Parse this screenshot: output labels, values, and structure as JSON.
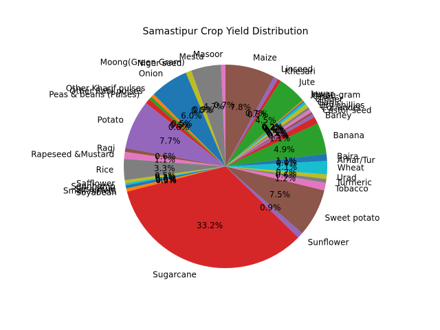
{
  "chart_data": {
    "type": "pie",
    "title": "Samastipur Crop Yield Distribution",
    "start_angle_deg": 90,
    "direction": "counterclockwise",
    "percent_format": "%1.1f%%",
    "slices": [
      {
        "label": "Masoor",
        "value": 0.7,
        "color": "#e377c2"
      },
      {
        "label": "Mesta",
        "value": 4.7,
        "color": "#7f7f7f"
      },
      {
        "label": "Moong(Green Gram)",
        "value": 0.9,
        "color": "#bcbd22"
      },
      {
        "label": "Niger seed",
        "value": 0.0,
        "color": "#17becf"
      },
      {
        "label": "Onion",
        "value": 6.0,
        "color": "#1f77b4"
      },
      {
        "label": "Other Kharif pulses",
        "value": 0.5,
        "color": "#ff7f0e"
      },
      {
        "label": "Other Rabi pulses",
        "value": 0.5,
        "color": "#2ca02c"
      },
      {
        "label": "Peas & beans (Pulses)",
        "value": 0.8,
        "color": "#d62728"
      },
      {
        "label": "Potato",
        "value": 7.7,
        "color": "#9467bd"
      },
      {
        "label": "Ragi",
        "value": 0.6,
        "color": "#8c564b"
      },
      {
        "label": "Rapeseed &Mustard",
        "value": 1.1,
        "color": "#e377c2"
      },
      {
        "label": "Rice",
        "value": 3.3,
        "color": "#7f7f7f"
      },
      {
        "label": "Safflower",
        "value": 0.5,
        "color": "#bcbd22"
      },
      {
        "label": "Sannhamp",
        "value": 0.3,
        "color": "#17becf"
      },
      {
        "label": "Sesamum",
        "value": 0.5,
        "color": "#1f77b4"
      },
      {
        "label": "Small millets",
        "value": 0.0,
        "color": "#ff7f0e"
      },
      {
        "label": "Soyabean",
        "value": 0.5,
        "color": "#ff7f0e"
      },
      {
        "label": "Sugarcane",
        "value": 33.2,
        "color": "#d62728"
      },
      {
        "label": "Sunflower",
        "value": 0.9,
        "color": "#9467bd"
      },
      {
        "label": "Sweet potato",
        "value": 7.5,
        "color": "#8c564b"
      },
      {
        "label": "Tobacco",
        "value": 1.2,
        "color": "#e377c2"
      },
      {
        "label": "Turmeric",
        "value": 0.6,
        "color": "#7f7f7f"
      },
      {
        "label": "Urad",
        "value": 0.7,
        "color": "#bcbd22"
      },
      {
        "label": "Wheat",
        "value": 2.1,
        "color": "#17becf"
      },
      {
        "label": "Arhar/Tur",
        "value": 0.0,
        "color": "#9467bd"
      },
      {
        "label": "Bajra",
        "value": 1.1,
        "color": "#1f77b4"
      },
      {
        "label": "Banana",
        "value": 4.9,
        "color": "#2ca02c"
      },
      {
        "label": "Barley",
        "value": 1.1,
        "color": "#d62728"
      },
      {
        "label": "Castor seed",
        "value": 0.5,
        "color": "#9467bd"
      },
      {
        "label": "Coriander",
        "value": 0.4,
        "color": "#8c564b"
      },
      {
        "label": "Dry chillies",
        "value": 0.5,
        "color": "#e377c2"
      },
      {
        "label": "Garlic",
        "value": 0.4,
        "color": "#7f7f7f"
      },
      {
        "label": "Ginger",
        "value": 0.6,
        "color": "#bcbd22"
      },
      {
        "label": "Gram",
        "value": 0.4,
        "color": "#17becf"
      },
      {
        "label": "Horse-gram",
        "value": 0.2,
        "color": "#1f77b4"
      },
      {
        "label": "Jowar",
        "value": 0.2,
        "color": "#ff7f0e"
      },
      {
        "label": "Jute",
        "value": 4.5,
        "color": "#2ca02c"
      },
      {
        "label": "Khesari",
        "value": 0.5,
        "color": "#d62728"
      },
      {
        "label": "Linseed",
        "value": 0.7,
        "color": "#9467bd"
      },
      {
        "label": "Maize",
        "value": 7.8,
        "color": "#8c564b"
      }
    ]
  }
}
